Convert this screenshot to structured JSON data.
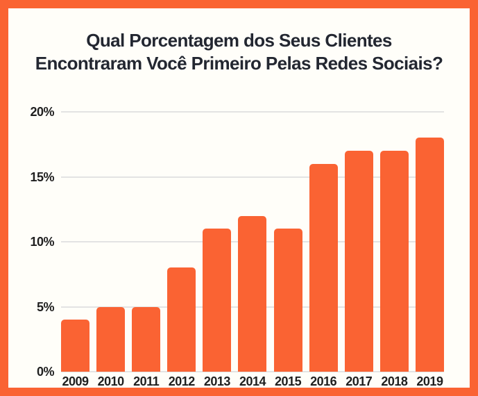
{
  "frame": {
    "border_color": "#FA6333",
    "background": "#FFFEF9"
  },
  "title": {
    "lines": [
      "Qual Porcentagem dos Seus Clientes",
      "Encontraram Você Primeiro Pelas Redes Sociais?"
    ],
    "color": "#232731"
  },
  "chart_data": {
    "type": "bar",
    "title": "Qual Porcentagem dos Seus Clientes Encontraram Você Primeiro Pelas Redes Sociais?",
    "categories": [
      "2009",
      "2010",
      "2011",
      "2012",
      "2013",
      "2014",
      "2015",
      "2016",
      "2017",
      "2018",
      "2019"
    ],
    "values": [
      4,
      5,
      5,
      8,
      11,
      12,
      11,
      16,
      17,
      17,
      18
    ],
    "unit": "%",
    "xlabel": "",
    "ylabel": "",
    "ylim": [
      0,
      20
    ],
    "yticks": [
      0,
      5,
      10,
      15,
      20
    ],
    "ytick_labels": [
      "0%",
      "5%",
      "10%",
      "15%",
      "20%"
    ],
    "grid": true,
    "legend": false,
    "bar_color": "#FA6333",
    "grid_color": "#E3E3E3",
    "tick_color": "#1F1F1F"
  }
}
